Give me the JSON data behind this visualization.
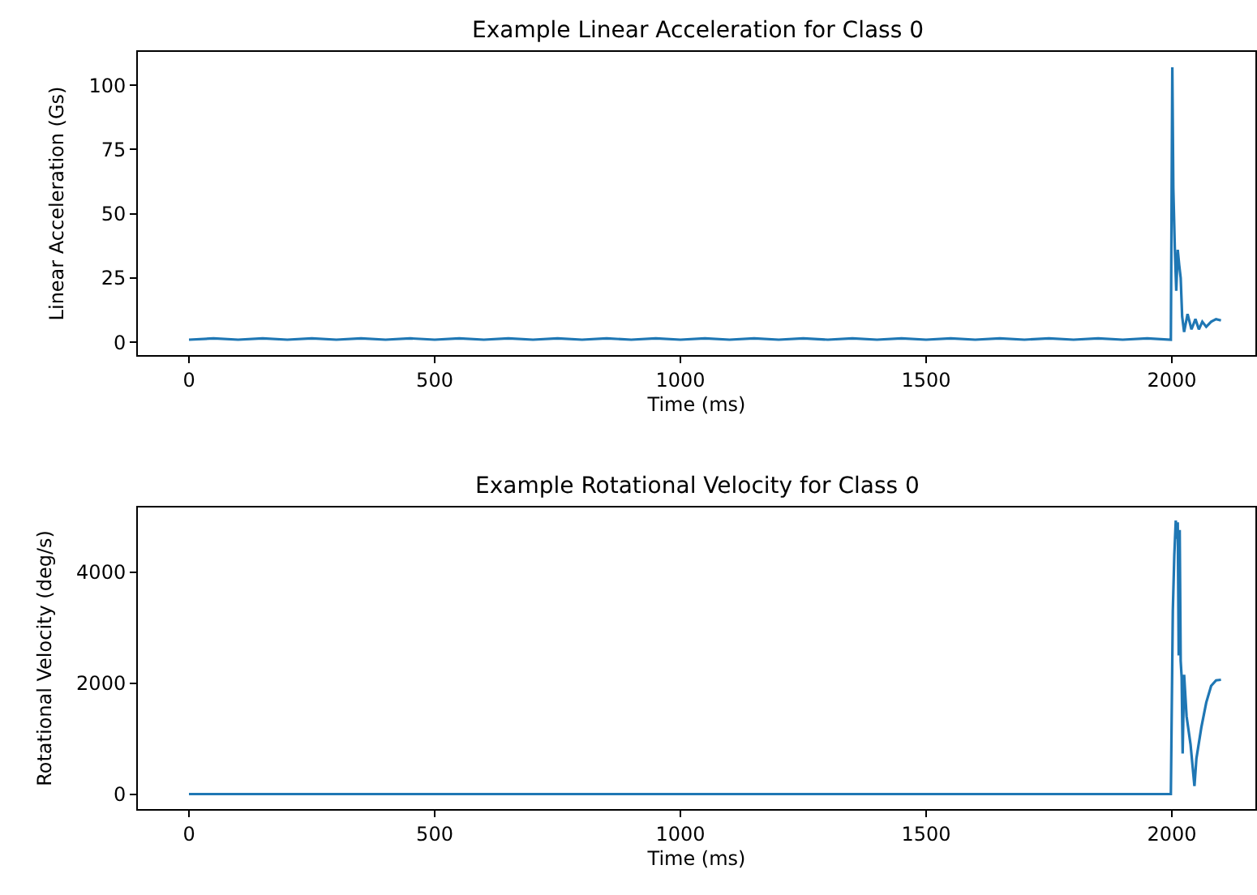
{
  "chart_data": [
    {
      "type": "line",
      "title": "Example Linear Acceleration for Class 0",
      "xlabel": "Time (ms)",
      "ylabel": "Linear Acceleration (Gs)",
      "xlim": [
        -104,
        2170
      ],
      "xticks": [
        0,
        500,
        1000,
        1500,
        2000
      ],
      "ylim": [
        -5,
        113
      ],
      "yticks": [
        0,
        25,
        50,
        75,
        100
      ],
      "x": [
        0,
        50,
        100,
        150,
        200,
        250,
        300,
        350,
        400,
        450,
        500,
        550,
        600,
        650,
        700,
        750,
        800,
        850,
        900,
        950,
        1000,
        1050,
        1100,
        1150,
        1200,
        1250,
        1300,
        1350,
        1400,
        1450,
        1500,
        1550,
        1600,
        1650,
        1700,
        1750,
        1800,
        1850,
        1900,
        1950,
        1998,
        2001,
        2003,
        2006,
        2009,
        2012,
        2015,
        2018,
        2021,
        2025,
        2032,
        2040,
        2048,
        2055,
        2062,
        2070,
        2080,
        2090,
        2100
      ],
      "series": [
        {
          "color": "#1f77b4",
          "values": [
            1,
            1.5,
            1,
            1.5,
            1,
            1.5,
            1,
            1.5,
            1,
            1.5,
            1,
            1.5,
            1,
            1.5,
            1,
            1.5,
            1,
            1.5,
            1,
            1.5,
            1,
            1.5,
            1,
            1.5,
            1,
            1.5,
            1,
            1.5,
            1,
            1.5,
            1,
            1.5,
            1,
            1.5,
            1,
            1.5,
            1,
            1.5,
            1,
            1.5,
            1,
            107,
            60,
            37,
            20,
            36,
            30,
            25,
            10,
            4,
            11,
            5,
            9,
            5,
            8,
            6,
            8,
            9,
            8.5
          ]
        }
      ]
    },
    {
      "type": "line",
      "title": "Example Rotational Velocity for Class 0",
      "xlabel": "Time (ms)",
      "ylabel": "Rotational Velocity (deg/s)",
      "xlim": [
        -104,
        2170
      ],
      "xticks": [
        0,
        500,
        1000,
        1500,
        2000
      ],
      "ylim": [
        -270,
        5165
      ],
      "yticks": [
        0,
        2000,
        4000
      ],
      "x": [
        0,
        100,
        200,
        300,
        400,
        500,
        600,
        700,
        800,
        900,
        1000,
        1100,
        1200,
        1300,
        1400,
        1500,
        1600,
        1700,
        1800,
        1900,
        1998,
        2002,
        2005,
        2008,
        2010,
        2012,
        2014,
        2016,
        2018,
        2020,
        2022,
        2025,
        2030,
        2038,
        2046,
        2050,
        2060,
        2070,
        2080,
        2090,
        2100
      ],
      "series": [
        {
          "color": "#1f77b4",
          "values": [
            0,
            0,
            0,
            0,
            0,
            0,
            0,
            0,
            0,
            0,
            0,
            0,
            0,
            0,
            0,
            0,
            0,
            0,
            0,
            0,
            0,
            3300,
            4300,
            4930,
            4600,
            4900,
            2500,
            4760,
            2400,
            2100,
            730,
            2150,
            1400,
            900,
            145,
            640,
            1200,
            1650,
            1950,
            2050,
            2060
          ]
        }
      ]
    }
  ]
}
